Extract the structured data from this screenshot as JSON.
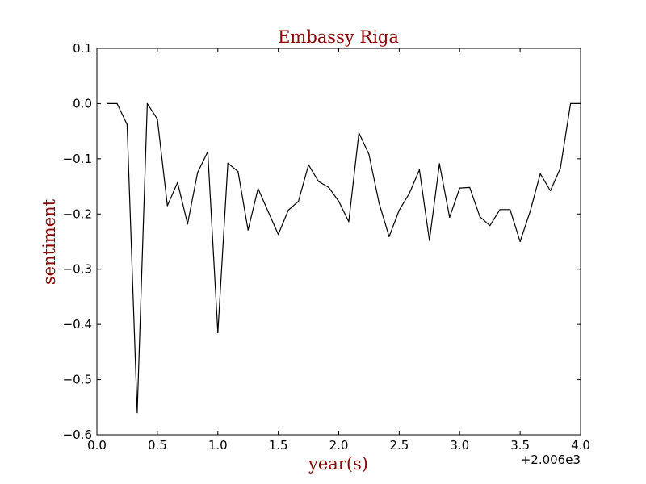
{
  "chart_data": {
    "type": "line",
    "title": "Embassy Riga",
    "xlabel": "year(s)",
    "ylabel": "sentiment",
    "x_offset_label": "+2.006e3",
    "xlim": [
      0.0,
      4.0
    ],
    "ylim": [
      -0.6,
      0.1
    ],
    "x_ticks": [
      0.0,
      0.5,
      1.0,
      1.5,
      2.0,
      2.5,
      3.0,
      3.5,
      4.0
    ],
    "x_tick_labels": [
      "0.0",
      "0.5",
      "1.0",
      "1.5",
      "2.0",
      "2.5",
      "3.0",
      "3.5",
      "4.0"
    ],
    "y_ticks": [
      0.1,
      0.0,
      -0.1,
      -0.2,
      -0.3,
      -0.4,
      -0.5,
      -0.6
    ],
    "y_tick_labels": [
      "0.1",
      "0.0",
      "−0.1",
      "−0.2",
      "−0.3",
      "−0.4",
      "−0.5",
      "−0.6"
    ],
    "grid": false,
    "colors": {
      "title": "#8b0000",
      "axis_label": "#8b0000",
      "line": "#000000"
    },
    "series": [
      {
        "x": [
          0.083,
          0.167,
          0.25,
          0.333,
          0.417,
          0.5,
          0.583,
          0.667,
          0.75,
          0.833,
          0.917,
          1.0,
          1.083,
          1.167,
          1.25,
          1.333,
          1.417,
          1.5,
          1.583,
          1.667,
          1.75,
          1.833,
          1.917,
          2.0,
          2.083,
          2.167,
          2.25,
          2.333,
          2.417,
          2.5,
          2.583,
          2.667,
          2.75,
          2.833,
          2.917,
          3.0,
          3.083,
          3.167,
          3.25,
          3.333,
          3.417,
          3.5,
          3.583,
          3.667,
          3.75,
          3.833,
          3.917,
          4.0
        ],
        "y": [
          0.0,
          0.0,
          -0.038,
          -0.56,
          0.0,
          -0.028,
          -0.185,
          -0.143,
          -0.218,
          -0.125,
          -0.087,
          -0.415,
          -0.108,
          -0.123,
          -0.229,
          -0.154,
          -0.196,
          -0.237,
          -0.193,
          -0.177,
          -0.111,
          -0.141,
          -0.152,
          -0.177,
          -0.214,
          -0.053,
          -0.092,
          -0.18,
          -0.241,
          -0.193,
          -0.163,
          -0.12,
          -0.248,
          -0.109,
          -0.206,
          -0.153,
          -0.152,
          -0.205,
          -0.221,
          -0.192,
          -0.192,
          -0.25,
          -0.195,
          -0.127,
          -0.158,
          -0.117,
          0.0,
          0.0
        ]
      }
    ]
  }
}
